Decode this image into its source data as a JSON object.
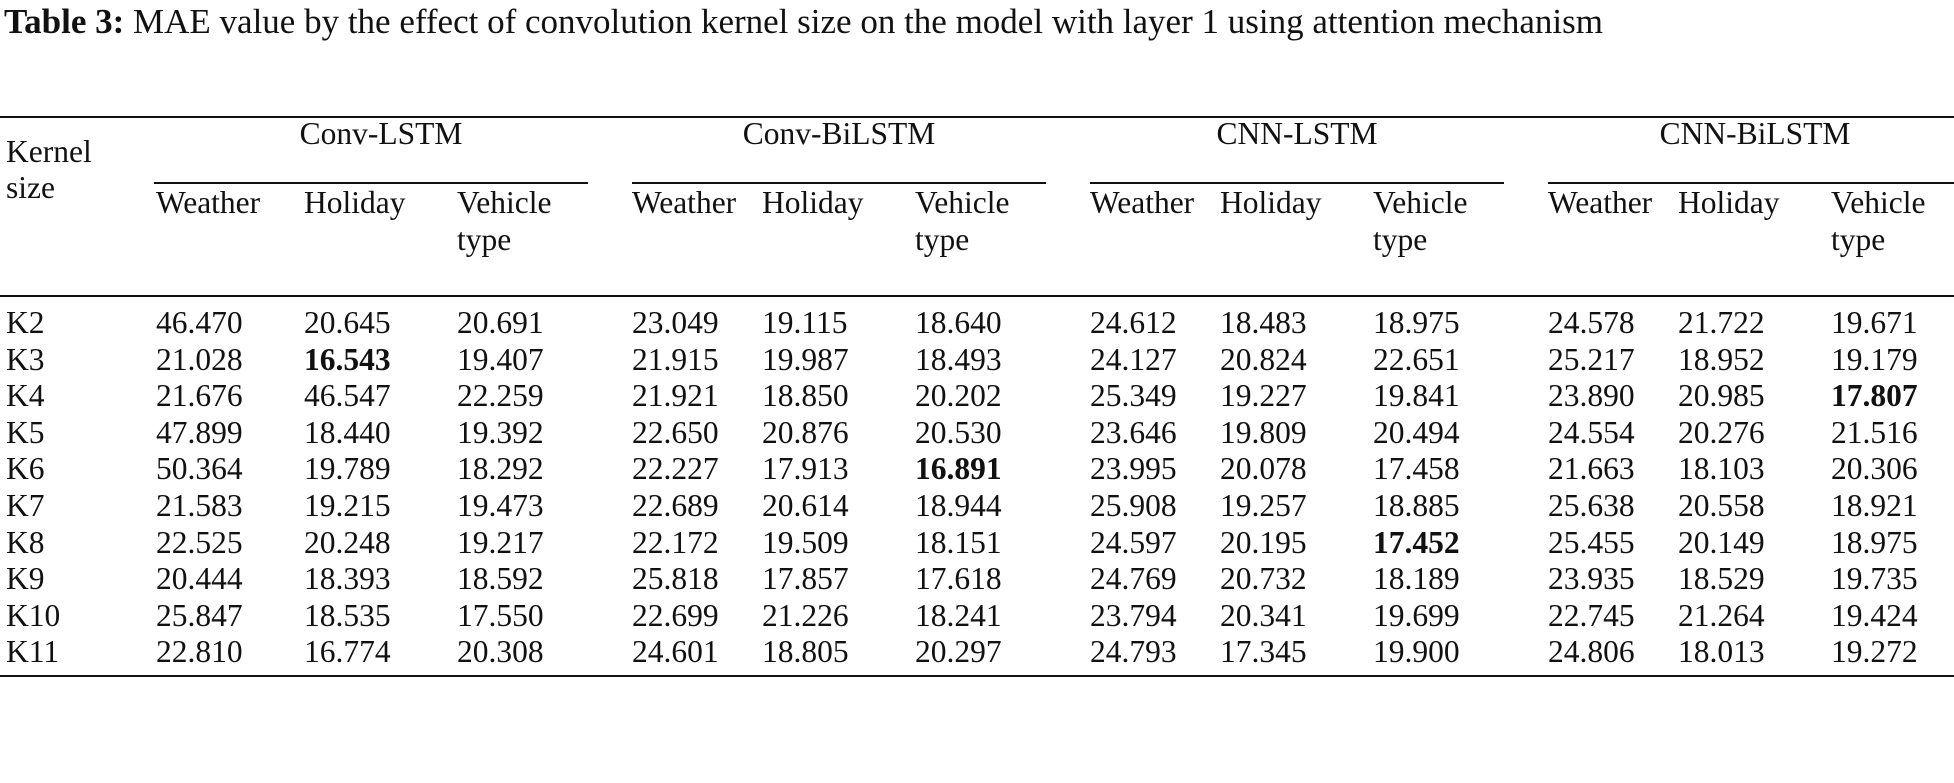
{
  "caption": {
    "label": "Table 3:",
    "text": " MAE value by the effect of convolution kernel size on the model with layer 1 using attention mechanism"
  },
  "table": {
    "kernel_header": "Kernel size",
    "groups": [
      "Conv-LSTM",
      "Conv-BiLSTM",
      "CNN-LSTM",
      "CNN-BiLSTM"
    ],
    "subheaders": [
      "Weather",
      "Holiday",
      "Vehicle type"
    ],
    "rows": [
      {
        "kernel": "K2",
        "values": [
          "46.470",
          "20.645",
          "20.691",
          "23.049",
          "19.115",
          "18.640",
          "24.612",
          "18.483",
          "18.975",
          "24.578",
          "21.722",
          "19.671"
        ],
        "bold": []
      },
      {
        "kernel": "K3",
        "values": [
          "21.028",
          "16.543",
          "19.407",
          "21.915",
          "19.987",
          "18.493",
          "24.127",
          "20.824",
          "22.651",
          "25.217",
          "18.952",
          "19.179"
        ],
        "bold": [
          1
        ]
      },
      {
        "kernel": "K4",
        "values": [
          "21.676",
          "46.547",
          "22.259",
          "21.921",
          "18.850",
          "20.202",
          "25.349",
          "19.227",
          "19.841",
          "23.890",
          "20.985",
          "17.807"
        ],
        "bold": [
          11
        ]
      },
      {
        "kernel": "K5",
        "values": [
          "47.899",
          "18.440",
          "19.392",
          "22.650",
          "20.876",
          "20.530",
          "23.646",
          "19.809",
          "20.494",
          "24.554",
          "20.276",
          "21.516"
        ],
        "bold": []
      },
      {
        "kernel": "K6",
        "values": [
          "50.364",
          "19.789",
          "18.292",
          "22.227",
          "17.913",
          "16.891",
          "23.995",
          "20.078",
          "17.458",
          "21.663",
          "18.103",
          "20.306"
        ],
        "bold": [
          5
        ]
      },
      {
        "kernel": "K7",
        "values": [
          "21.583",
          "19.215",
          "19.473",
          "22.689",
          "20.614",
          "18.944",
          "25.908",
          "19.257",
          "18.885",
          "25.638",
          "20.558",
          "18.921"
        ],
        "bold": []
      },
      {
        "kernel": "K8",
        "values": [
          "22.525",
          "20.248",
          "19.217",
          "22.172",
          "19.509",
          "18.151",
          "24.597",
          "20.195",
          "17.452",
          "25.455",
          "20.149",
          "18.975"
        ],
        "bold": [
          8
        ]
      },
      {
        "kernel": "K9",
        "values": [
          "20.444",
          "18.393",
          "18.592",
          "25.818",
          "17.857",
          "17.618",
          "24.769",
          "20.732",
          "18.189",
          "23.935",
          "18.529",
          "19.735"
        ],
        "bold": []
      },
      {
        "kernel": "K10",
        "values": [
          "25.847",
          "18.535",
          "17.550",
          "22.699",
          "21.226",
          "18.241",
          "23.794",
          "20.341",
          "19.699",
          "22.745",
          "21.264",
          "19.424"
        ],
        "bold": []
      },
      {
        "kernel": "K11",
        "values": [
          "22.810",
          "16.774",
          "20.308",
          "24.601",
          "18.805",
          "20.297",
          "24.793",
          "17.345",
          "19.900",
          "24.806",
          "18.013",
          "19.272"
        ],
        "bold": []
      }
    ]
  }
}
